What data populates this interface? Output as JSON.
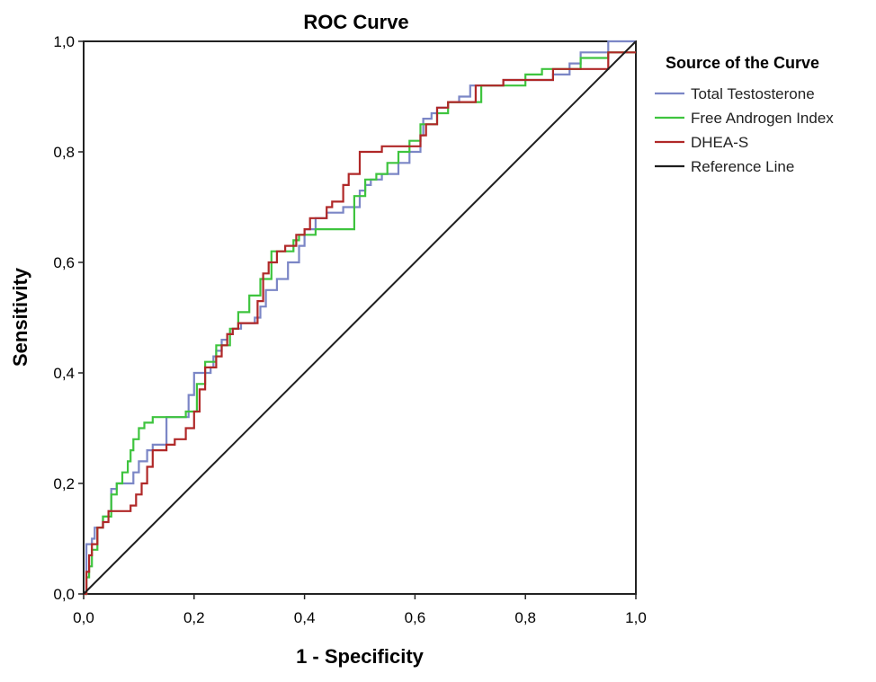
{
  "chart_data": {
    "type": "line",
    "title": "ROC Curve",
    "xlabel": "1 - Specificity",
    "ylabel": "Sensitivity",
    "xlim": [
      0,
      1
    ],
    "ylim": [
      0,
      1
    ],
    "xticks": [
      "0,0",
      "0,2",
      "0,4",
      "0,6",
      "0,8",
      "1,0"
    ],
    "yticks": [
      "0,0",
      "0,2",
      "0,4",
      "0,6",
      "0,8",
      "1,0"
    ],
    "grid": false,
    "legend": {
      "title": "Source of the Curve",
      "position": "right"
    },
    "series": [
      {
        "name": "Total Testosterone",
        "color": "#7b86c6",
        "x": [
          0,
          0.005,
          0.005,
          0.015,
          0.015,
          0.02,
          0.02,
          0.035,
          0.035,
          0.045,
          0.045,
          0.05,
          0.05,
          0.06,
          0.06,
          0.09,
          0.09,
          0.1,
          0.1,
          0.115,
          0.115,
          0.125,
          0.125,
          0.15,
          0.15,
          0.19,
          0.19,
          0.2,
          0.2,
          0.23,
          0.23,
          0.235,
          0.235,
          0.24,
          0.24,
          0.25,
          0.25,
          0.26,
          0.26,
          0.27,
          0.27,
          0.285,
          0.285,
          0.31,
          0.31,
          0.32,
          0.32,
          0.33,
          0.33,
          0.35,
          0.35,
          0.37,
          0.37,
          0.39,
          0.39,
          0.4,
          0.4,
          0.42,
          0.42,
          0.44,
          0.44,
          0.47,
          0.47,
          0.5,
          0.5,
          0.51,
          0.51,
          0.52,
          0.52,
          0.54,
          0.54,
          0.57,
          0.57,
          0.59,
          0.59,
          0.61,
          0.61,
          0.615,
          0.615,
          0.63,
          0.63,
          0.64,
          0.64,
          0.66,
          0.66,
          0.68,
          0.68,
          0.7,
          0.7,
          0.76,
          0.76,
          0.85,
          0.85,
          0.88,
          0.88,
          0.9,
          0.9,
          0.95,
          0.95,
          1.0
        ],
        "y": [
          0,
          0,
          0.09,
          0.09,
          0.1,
          0.1,
          0.12,
          0.12,
          0.14,
          0.14,
          0.15,
          0.15,
          0.19,
          0.19,
          0.2,
          0.2,
          0.22,
          0.22,
          0.24,
          0.24,
          0.26,
          0.26,
          0.27,
          0.27,
          0.32,
          0.32,
          0.36,
          0.36,
          0.4,
          0.4,
          0.41,
          0.41,
          0.43,
          0.43,
          0.44,
          0.44,
          0.46,
          0.46,
          0.47,
          0.47,
          0.48,
          0.48,
          0.49,
          0.49,
          0.5,
          0.5,
          0.52,
          0.52,
          0.55,
          0.55,
          0.57,
          0.57,
          0.6,
          0.6,
          0.63,
          0.63,
          0.66,
          0.66,
          0.68,
          0.68,
          0.69,
          0.69,
          0.7,
          0.7,
          0.73,
          0.73,
          0.74,
          0.74,
          0.75,
          0.75,
          0.76,
          0.76,
          0.78,
          0.78,
          0.8,
          0.8,
          0.83,
          0.83,
          0.86,
          0.86,
          0.87,
          0.87,
          0.88,
          0.88,
          0.89,
          0.89,
          0.9,
          0.9,
          0.92,
          0.92,
          0.93,
          0.93,
          0.94,
          0.94,
          0.96,
          0.96,
          0.98,
          0.98,
          1.0,
          1.0
        ]
      },
      {
        "name": "Free Androgen Index",
        "color": "#3ec43e",
        "x": [
          0,
          0.005,
          0.005,
          0.01,
          0.01,
          0.015,
          0.015,
          0.025,
          0.025,
          0.035,
          0.035,
          0.05,
          0.05,
          0.06,
          0.06,
          0.07,
          0.07,
          0.08,
          0.08,
          0.085,
          0.085,
          0.09,
          0.09,
          0.1,
          0.1,
          0.11,
          0.11,
          0.125,
          0.125,
          0.185,
          0.185,
          0.205,
          0.205,
          0.22,
          0.22,
          0.24,
          0.24,
          0.265,
          0.265,
          0.28,
          0.28,
          0.3,
          0.3,
          0.32,
          0.32,
          0.34,
          0.34,
          0.38,
          0.38,
          0.39,
          0.39,
          0.42,
          0.42,
          0.49,
          0.49,
          0.51,
          0.51,
          0.53,
          0.53,
          0.55,
          0.55,
          0.57,
          0.57,
          0.59,
          0.59,
          0.61,
          0.61,
          0.64,
          0.64,
          0.66,
          0.66,
          0.72,
          0.72,
          0.8,
          0.8,
          0.83,
          0.83,
          0.9,
          0.9,
          0.95,
          0.95,
          1.0
        ],
        "y": [
          0,
          0,
          0.03,
          0.03,
          0.05,
          0.05,
          0.08,
          0.08,
          0.12,
          0.12,
          0.14,
          0.14,
          0.18,
          0.18,
          0.2,
          0.2,
          0.22,
          0.22,
          0.24,
          0.24,
          0.26,
          0.26,
          0.28,
          0.28,
          0.3,
          0.3,
          0.31,
          0.31,
          0.32,
          0.32,
          0.33,
          0.33,
          0.38,
          0.38,
          0.42,
          0.42,
          0.45,
          0.45,
          0.48,
          0.48,
          0.51,
          0.51,
          0.54,
          0.54,
          0.57,
          0.57,
          0.62,
          0.62,
          0.64,
          0.64,
          0.65,
          0.65,
          0.66,
          0.66,
          0.72,
          0.72,
          0.75,
          0.75,
          0.76,
          0.76,
          0.78,
          0.78,
          0.8,
          0.8,
          0.82,
          0.82,
          0.85,
          0.85,
          0.87,
          0.87,
          0.89,
          0.89,
          0.92,
          0.92,
          0.94,
          0.94,
          0.95,
          0.95,
          0.97,
          0.97,
          0.98,
          0.98
        ]
      },
      {
        "name": "DHEA-S",
        "color": "#b02828",
        "x": [
          0,
          0.005,
          0.005,
          0.01,
          0.01,
          0.015,
          0.015,
          0.025,
          0.025,
          0.035,
          0.035,
          0.045,
          0.045,
          0.085,
          0.085,
          0.095,
          0.095,
          0.105,
          0.105,
          0.115,
          0.115,
          0.125,
          0.125,
          0.15,
          0.15,
          0.165,
          0.165,
          0.185,
          0.185,
          0.2,
          0.2,
          0.21,
          0.21,
          0.22,
          0.22,
          0.24,
          0.24,
          0.25,
          0.25,
          0.26,
          0.26,
          0.27,
          0.27,
          0.28,
          0.28,
          0.315,
          0.315,
          0.325,
          0.325,
          0.335,
          0.335,
          0.35,
          0.35,
          0.365,
          0.365,
          0.385,
          0.385,
          0.4,
          0.4,
          0.41,
          0.41,
          0.44,
          0.44,
          0.45,
          0.45,
          0.47,
          0.47,
          0.48,
          0.48,
          0.5,
          0.5,
          0.54,
          0.54,
          0.61,
          0.61,
          0.62,
          0.62,
          0.64,
          0.64,
          0.66,
          0.66,
          0.71,
          0.71,
          0.76,
          0.76,
          0.85,
          0.85,
          0.95,
          0.95,
          1.0
        ],
        "y": [
          0,
          0,
          0.04,
          0.04,
          0.07,
          0.07,
          0.09,
          0.09,
          0.12,
          0.12,
          0.13,
          0.13,
          0.15,
          0.15,
          0.16,
          0.16,
          0.18,
          0.18,
          0.2,
          0.2,
          0.23,
          0.23,
          0.26,
          0.26,
          0.27,
          0.27,
          0.28,
          0.28,
          0.3,
          0.3,
          0.33,
          0.33,
          0.37,
          0.37,
          0.41,
          0.41,
          0.43,
          0.43,
          0.45,
          0.45,
          0.47,
          0.47,
          0.48,
          0.48,
          0.49,
          0.49,
          0.53,
          0.53,
          0.58,
          0.58,
          0.6,
          0.6,
          0.62,
          0.62,
          0.63,
          0.63,
          0.65,
          0.65,
          0.66,
          0.66,
          0.68,
          0.68,
          0.7,
          0.7,
          0.71,
          0.71,
          0.74,
          0.74,
          0.76,
          0.76,
          0.8,
          0.8,
          0.81,
          0.81,
          0.83,
          0.83,
          0.85,
          0.85,
          0.88,
          0.88,
          0.89,
          0.89,
          0.92,
          0.92,
          0.93,
          0.93,
          0.95,
          0.95,
          0.98,
          0.98
        ]
      },
      {
        "name": "Reference Line",
        "color": "#1e1e1e",
        "x": [
          0,
          1
        ],
        "y": [
          0,
          1
        ]
      }
    ]
  }
}
